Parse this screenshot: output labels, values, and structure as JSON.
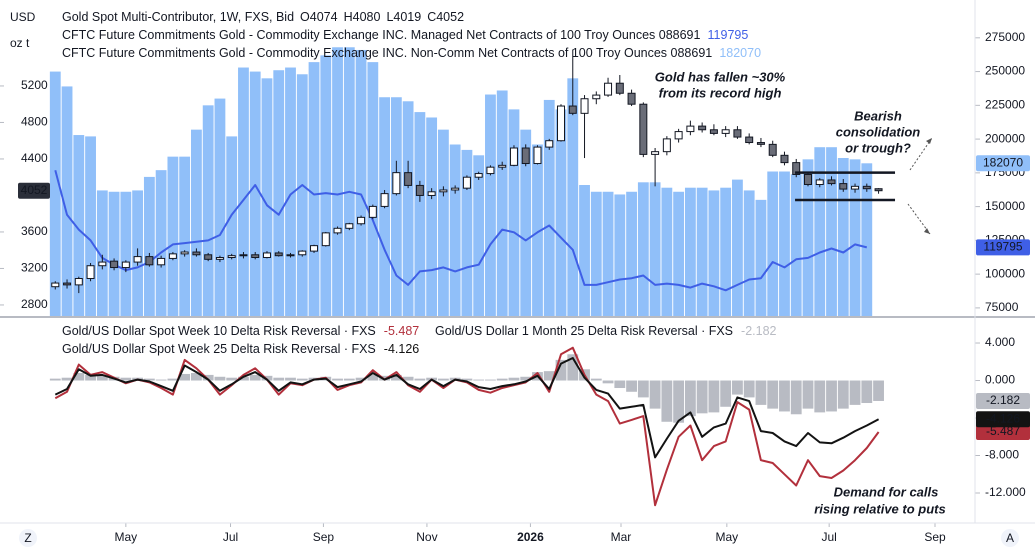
{
  "chart_data": [
    {
      "type": "candlestick",
      "title": "Gold Spot Multi-Contributor, 1W, FXS, Bid",
      "ohlc_labels": [
        "O",
        "H",
        "L",
        "C"
      ],
      "y_unit": [
        "USD",
        "oz t"
      ],
      "xlim": [
        -4.7,
        78.2
      ],
      "xticks": [
        {
          "value": 6.0,
          "label": "May"
        },
        {
          "value": 14.9,
          "label": "Jul"
        },
        {
          "value": 22.8,
          "label": "Sep"
        },
        {
          "value": 31.6,
          "label": "Nov"
        },
        {
          "value": 40.4,
          "label": "2026"
        },
        {
          "value": 48.1,
          "label": "Mar"
        },
        {
          "value": 57.1,
          "label": "May"
        },
        {
          "value": 65.8,
          "label": "Jul"
        },
        {
          "value": 74.8,
          "label": "Sep"
        }
      ],
      "ylim": [
        2679,
        6142
      ],
      "yticks": [
        2800,
        3200,
        3600,
        4400,
        4800,
        5200
      ],
      "y2lim": [
        69000,
        303000
      ],
      "y2ticks": [
        75000,
        100000,
        125000,
        150000,
        175000,
        200000,
        225000,
        250000,
        275000
      ],
      "up_color": "#ffffff",
      "down_color": "#6a6d78",
      "open": [
        3000,
        3040,
        3020,
        3090,
        3230,
        3280,
        3210,
        3270,
        3330,
        3240,
        3310,
        3360,
        3380,
        3350,
        3300,
        3320,
        3340,
        3350,
        3320,
        3370,
        3340,
        3350,
        3390,
        3450,
        3590,
        3640,
        3690,
        3760,
        3880,
        4020,
        4250,
        4110,
        4000,
        4040,
        4060,
        4080,
        4200,
        4240,
        4310,
        4330,
        4520,
        4350,
        4530,
        4600,
        4980,
        4900,
        5060,
        5100,
        5230,
        5120,
        5000,
        4450,
        4480,
        4620,
        4700,
        4760,
        4720,
        4680,
        4720,
        4640,
        4580,
        4560,
        4440,
        4360,
        4230,
        4120,
        4170,
        4130,
        4070,
        4100,
        4074
      ],
      "high": [
        3060,
        3080,
        3110,
        3260,
        3350,
        3310,
        3290,
        3420,
        3370,
        3340,
        3380,
        3400,
        3420,
        3370,
        3340,
        3360,
        3380,
        3380,
        3390,
        3390,
        3370,
        3400,
        3460,
        3600,
        3660,
        3700,
        3780,
        3900,
        4060,
        4380,
        4380,
        4160,
        4080,
        4100,
        4110,
        4220,
        4260,
        4330,
        4370,
        4550,
        4560,
        4550,
        4620,
        5000,
        5600,
        5100,
        5140,
        5290,
        5320,
        5160,
        5020,
        4520,
        4650,
        4730,
        4820,
        4800,
        4780,
        4760,
        4760,
        4680,
        4630,
        4600,
        4480,
        4400,
        4250,
        4190,
        4210,
        4180,
        4130,
        4130,
        4080
      ],
      "low": [
        2970,
        2980,
        2930,
        3060,
        3190,
        3180,
        3160,
        3230,
        3220,
        3210,
        3290,
        3330,
        3330,
        3280,
        3270,
        3300,
        3310,
        3300,
        3310,
        3330,
        3320,
        3330,
        3370,
        3440,
        3570,
        3620,
        3670,
        3740,
        3860,
        4000,
        4080,
        3930,
        3960,
        3990,
        4020,
        4060,
        4170,
        4220,
        4280,
        4320,
        4320,
        4340,
        4500,
        4590,
        4880,
        4410,
        5000,
        5080,
        5100,
        4980,
        4420,
        4100,
        4440,
        4580,
        4660,
        4690,
        4660,
        4640,
        4620,
        4560,
        4530,
        4420,
        4330,
        4200,
        4100,
        4090,
        4110,
        4040,
        4030,
        4040,
        4019
      ],
      "close": [
        3040,
        3020,
        3090,
        3230,
        3270,
        3210,
        3270,
        3330,
        3240,
        3310,
        3360,
        3380,
        3350,
        3300,
        3320,
        3340,
        3350,
        3320,
        3370,
        3340,
        3350,
        3390,
        3450,
        3590,
        3640,
        3690,
        3760,
        3880,
        4020,
        4250,
        4110,
        4000,
        4040,
        4060,
        4080,
        4200,
        4240,
        4310,
        4330,
        4520,
        4350,
        4530,
        4600,
        4980,
        4900,
        5060,
        5100,
        5230,
        5120,
        5000,
        4450,
        4480,
        4620,
        4700,
        4760,
        4720,
        4680,
        4720,
        4640,
        4580,
        4560,
        4440,
        4360,
        4230,
        4120,
        4170,
        4130,
        4070,
        4100,
        4074,
        4052
      ],
      "series": [
        {
          "name": "CFTC Future Commitments Gold - Commodity Exchange INC. Managed Net Contracts of 100 Troy Ounces 088691",
          "type": "line",
          "axis": "y2",
          "color": "#3f5fe6",
          "values": [
            177000,
            144000,
            133000,
            125000,
            112000,
            107000,
            103000,
            105000,
            109000,
            116000,
            122000,
            123000,
            124000,
            125000,
            129000,
            144000,
            155000,
            166000,
            151000,
            144000,
            159000,
            166000,
            159000,
            160000,
            159000,
            161000,
            159000,
            140000,
            118000,
            99000,
            92000,
            102000,
            103000,
            105000,
            102000,
            105000,
            107000,
            122000,
            133000,
            131000,
            125000,
            131000,
            136000,
            127000,
            118000,
            92000,
            92000,
            94000,
            96000,
            97000,
            99000,
            92000,
            93000,
            92000,
            90000,
            93000,
            91000,
            88000,
            92000,
            96000,
            97000,
            109000,
            105000,
            111000,
            112000,
            116000,
            119000,
            116000,
            122000,
            119795,
            null
          ]
        },
        {
          "name": "CFTC Future Commitments Gold - Commodity Exchange INC. Non-Comm Net Contracts of 100 Troy Ounces 088691",
          "type": "bar",
          "axis": "y2",
          "color": "#90bff9",
          "values": [
            250000,
            239000,
            203000,
            202000,
            162000,
            161000,
            161000,
            162000,
            172000,
            177000,
            187000,
            187000,
            207000,
            225000,
            230000,
            202000,
            253000,
            250000,
            245000,
            251000,
            253000,
            248000,
            257000,
            262000,
            268000,
            268000,
            266000,
            257000,
            231000,
            231000,
            228000,
            220000,
            216000,
            207000,
            196000,
            192000,
            188000,
            233000,
            236000,
            222000,
            207000,
            196000,
            229000,
            222000,
            245000,
            166000,
            161000,
            161000,
            159000,
            161000,
            168000,
            168000,
            164000,
            161000,
            164000,
            164000,
            162000,
            164000,
            170000,
            162000,
            155000,
            176000,
            176000,
            174000,
            185000,
            194000,
            194000,
            186000,
            185000,
            182070,
            null
          ]
        }
      ],
      "levels": [
        4250,
        3950
      ],
      "annotations": [
        {
          "lines": [
            "Gold has fallen ~30%",
            "from its record high"
          ]
        },
        {
          "lines": [
            "Bearish",
            "consolidation",
            "or trough?"
          ]
        }
      ]
    },
    {
      "type": "line",
      "ylim": [
        -15.2,
        6.67
      ],
      "yticks": [
        {
          "value": 4,
          "label": "4.000"
        },
        {
          "value": 0,
          "label": "0.000"
        },
        {
          "value": -4,
          "label": "-4.000"
        },
        {
          "value": -8,
          "label": "-8.000"
        },
        {
          "value": -12,
          "label": "-12.000"
        }
      ],
      "series": [
        {
          "name": "Gold/US Dollar Spot Week 10 Delta Risk Reversal · FXS",
          "type": "line",
          "color": "#b2303c",
          "values": [
            -1.9,
            -1.2,
            1.7,
            0.6,
            0.9,
            0.3,
            -0.3,
            0.1,
            -0.2,
            -0.8,
            -1.5,
            2.2,
            1.3,
            0.1,
            -1.5,
            -0.5,
            0.6,
            1.3,
            0.1,
            -1.5,
            -0.3,
            -0.5,
            0.1,
            0.3,
            -1.0,
            -0.5,
            -0.2,
            1.1,
            0.1,
            0.9,
            -0.5,
            -1.2,
            0.1,
            -0.8,
            0.1,
            -0.2,
            -1.0,
            -1.3,
            -0.8,
            -0.5,
            -0.2,
            0.8,
            -1.2,
            2.8,
            3.5,
            0.6,
            -1.5,
            -2.2,
            -4.6,
            -4.2,
            -3.8,
            -13.3,
            -9.5,
            -6.0,
            -4.8,
            -8.5,
            -7.0,
            -6.5,
            -2.3,
            -3.1,
            -8.5,
            -8.8,
            -10.0,
            -11.2,
            -8.5,
            -10.2,
            -10.4,
            -9.6,
            -8.5,
            -7.2,
            -5.487
          ]
        },
        {
          "name": "Gold/US Dollar 1 Month 25 Delta Risk Reversal · FXS",
          "type": "bar",
          "color": "#b8bbc3",
          "values": [
            0.2,
            0.3,
            0.8,
            0.6,
            0.5,
            0.4,
            0.3,
            0.3,
            0.2,
            0.1,
            0.2,
            0.7,
            0.8,
            0.6,
            0.4,
            0.3,
            0.4,
            0.6,
            0.5,
            0.3,
            0.3,
            0.2,
            0.3,
            0.4,
            0.2,
            0.2,
            0.3,
            0.6,
            0.5,
            0.6,
            0.4,
            0.2,
            0.3,
            0.2,
            0.3,
            0.2,
            0.1,
            0.1,
            0.2,
            0.3,
            0.4,
            0.9,
            1.0,
            2.2,
            2.8,
            1.2,
            0.2,
            -0.3,
            -0.8,
            -1.2,
            -1.8,
            -3.0,
            -4.4,
            -4.5,
            -3.8,
            -3.5,
            -3.4,
            -2.8,
            -1.5,
            -1.8,
            -2.6,
            -3.0,
            -3.3,
            -3.6,
            -3.0,
            -3.4,
            -3.3,
            -3.0,
            -2.6,
            -2.4,
            -2.182
          ]
        },
        {
          "name": "Gold/US Dollar Spot Week 25 Delta Risk Reversal · FXS",
          "type": "line",
          "color": "#131313",
          "values": [
            -1.5,
            -0.9,
            1.2,
            0.5,
            0.6,
            0.2,
            -0.2,
            0.1,
            -0.1,
            -0.6,
            -1.1,
            1.6,
            0.9,
            0.1,
            -1.1,
            -0.4,
            0.4,
            0.9,
            0.1,
            -1.1,
            -0.2,
            -0.4,
            0.1,
            0.2,
            -0.7,
            -0.4,
            -0.1,
            0.8,
            0.1,
            0.6,
            -0.4,
            -0.9,
            0.1,
            -0.6,
            0.1,
            -0.1,
            -0.7,
            -0.9,
            -0.6,
            -0.4,
            -0.1,
            0.5,
            -0.9,
            1.8,
            2.4,
            0.3,
            -1.0,
            -1.4,
            -3.0,
            -2.8,
            -2.6,
            -8.2,
            -6.2,
            -4.3,
            -3.4,
            -6.0,
            -5.0,
            -4.6,
            -1.8,
            -2.2,
            -5.4,
            -5.6,
            -6.5,
            -7.0,
            -5.6,
            -6.6,
            -6.7,
            -6.1,
            -5.4,
            -4.8,
            -4.126
          ]
        }
      ],
      "annotations": [
        {
          "lines": [
            "Demand for calls",
            "rising relative to puts"
          ]
        }
      ]
    }
  ],
  "buttons": [
    "Z",
    "A"
  ]
}
